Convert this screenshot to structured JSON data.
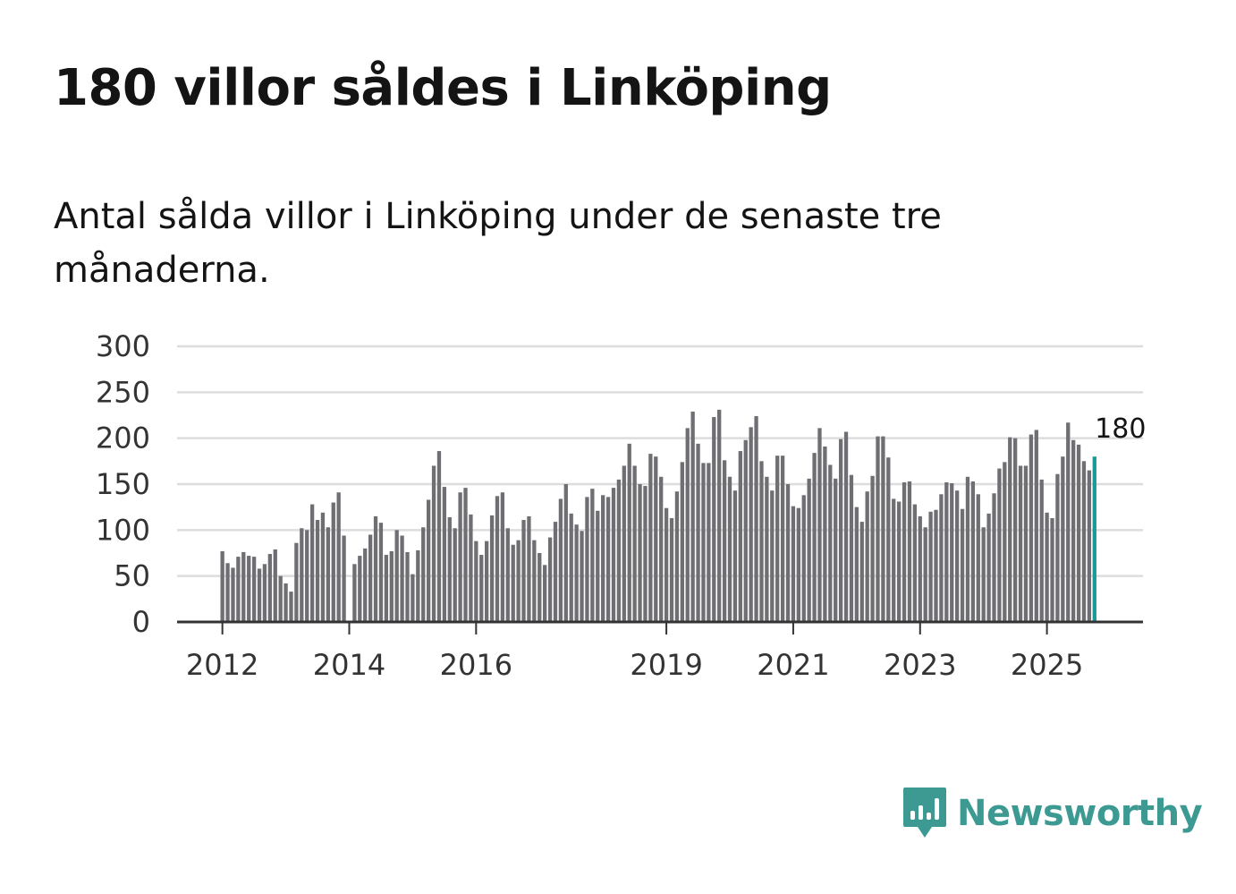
{
  "title": "180 villor såldes i Linköping",
  "subtitle": "Antal sålda villor i Linköping under de senaste tre månaderna.",
  "brand": {
    "name": "Newsworthy",
    "color": "#3d9a93",
    "icon": "bar-chart-bubble-icon"
  },
  "colors": {
    "bar": "#6e6e73",
    "highlight": "#1a9a96",
    "grid": "#dddddd",
    "axis": "#333333"
  },
  "chart_data": {
    "type": "bar",
    "title": "",
    "xlabel": "",
    "ylabel": "",
    "ylim": [
      0,
      300
    ],
    "yticks": [
      0,
      50,
      100,
      150,
      200,
      250,
      300
    ],
    "xlim": [
      0,
      177
    ],
    "xticks": [
      {
        "label": "2012",
        "index": 0
      },
      {
        "label": "2014",
        "index": 24
      },
      {
        "label": "2016",
        "index": 48
      },
      {
        "label": "2019",
        "index": 84
      },
      {
        "label": "2021",
        "index": 108
      },
      {
        "label": "2023",
        "index": 132
      },
      {
        "label": "2025",
        "index": 156
      }
    ],
    "highlight_label": "180",
    "values": [
      77,
      64,
      59,
      71,
      76,
      72,
      71,
      58,
      63,
      74,
      79,
      50,
      42,
      33,
      86,
      102,
      100,
      128,
      111,
      119,
      103,
      130,
      141,
      94,
      null,
      63,
      72,
      80,
      95,
      115,
      108,
      73,
      77,
      100,
      94,
      76,
      52,
      78,
      103,
      133,
      170,
      186,
      147,
      114,
      102,
      141,
      146,
      117,
      88,
      73,
      88,
      116,
      137,
      141,
      102,
      84,
      89,
      111,
      115,
      89,
      75,
      62,
      92,
      109,
      134,
      150,
      118,
      106,
      99,
      136,
      145,
      121,
      138,
      136,
      146,
      155,
      170,
      194,
      170,
      150,
      148,
      183,
      180,
      158,
      124,
      113,
      142,
      174,
      211,
      229,
      194,
      173,
      173,
      223,
      231,
      176,
      158,
      143,
      186,
      198,
      212,
      224,
      175,
      158,
      143,
      181,
      181,
      150,
      126,
      124,
      138,
      156,
      184,
      211,
      191,
      171,
      156,
      199,
      207,
      160,
      125,
      109,
      142,
      159,
      202,
      202,
      179,
      134,
      131,
      152,
      153,
      128,
      115,
      103,
      120,
      122,
      139,
      152,
      151,
      143,
      123,
      158,
      153,
      139,
      103,
      118,
      140,
      167,
      174,
      201,
      200,
      170,
      170,
      204,
      209,
      155,
      119,
      113,
      161,
      180,
      217,
      198,
      193,
      175,
      165,
      180
    ]
  }
}
